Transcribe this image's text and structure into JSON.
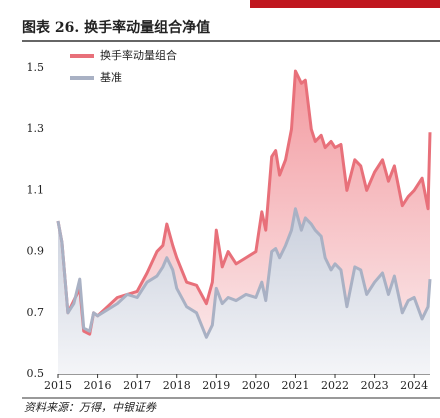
{
  "chart_data": {
    "type": "area-line",
    "title": "图表 26. 换手率动量组合净值",
    "source": "资料来源：万得，中银证券",
    "x": [
      2015.0,
      2015.1,
      2015.25,
      2015.4,
      2015.55,
      2015.65,
      2015.8,
      2015.9,
      2016.0,
      2016.25,
      2016.5,
      2016.75,
      2017.0,
      2017.25,
      2017.5,
      2017.65,
      2017.75,
      2017.9,
      2018.0,
      2018.25,
      2018.5,
      2018.75,
      2018.9,
      2019.0,
      2019.15,
      2019.3,
      2019.5,
      2019.75,
      2020.0,
      2020.15,
      2020.25,
      2020.4,
      2020.5,
      2020.6,
      2020.75,
      2020.9,
      2021.0,
      2021.15,
      2021.25,
      2021.4,
      2021.5,
      2021.65,
      2021.75,
      2021.9,
      2022.0,
      2022.15,
      2022.3,
      2022.5,
      2022.65,
      2022.8,
      2023.0,
      2023.2,
      2023.35,
      2023.5,
      2023.7,
      2023.85,
      2024.0,
      2024.2,
      2024.35,
      2024.4
    ],
    "series": [
      {
        "name": "换手率动量组合",
        "color": "#e8707a",
        "fill": "#f6b5b9",
        "values": [
          1.0,
          0.93,
          0.7,
          0.74,
          0.78,
          0.64,
          0.63,
          0.7,
          0.69,
          0.72,
          0.75,
          0.76,
          0.77,
          0.83,
          0.9,
          0.92,
          0.99,
          0.92,
          0.88,
          0.8,
          0.79,
          0.73,
          0.8,
          0.97,
          0.85,
          0.9,
          0.86,
          0.88,
          0.9,
          1.03,
          0.97,
          1.21,
          1.23,
          1.15,
          1.2,
          1.3,
          1.49,
          1.45,
          1.46,
          1.3,
          1.26,
          1.28,
          1.24,
          1.26,
          1.24,
          1.25,
          1.1,
          1.2,
          1.18,
          1.1,
          1.16,
          1.2,
          1.13,
          1.18,
          1.05,
          1.08,
          1.1,
          1.14,
          1.04,
          1.29
        ]
      },
      {
        "name": "基准",
        "color": "#a9b1c4",
        "fill": "#dde1ea",
        "values": [
          1.0,
          0.93,
          0.7,
          0.73,
          0.81,
          0.65,
          0.64,
          0.7,
          0.69,
          0.71,
          0.73,
          0.76,
          0.75,
          0.8,
          0.82,
          0.85,
          0.88,
          0.84,
          0.78,
          0.72,
          0.7,
          0.62,
          0.66,
          0.78,
          0.73,
          0.75,
          0.74,
          0.76,
          0.75,
          0.8,
          0.74,
          0.9,
          0.91,
          0.88,
          0.92,
          0.97,
          1.04,
          0.97,
          1.01,
          0.99,
          0.97,
          0.95,
          0.88,
          0.84,
          0.86,
          0.84,
          0.72,
          0.85,
          0.84,
          0.76,
          0.8,
          0.83,
          0.76,
          0.82,
          0.7,
          0.74,
          0.75,
          0.68,
          0.72,
          0.81
        ]
      }
    ],
    "xlim": [
      2015,
      2024.4
    ],
    "xticks": [
      2015,
      2016,
      2017,
      2018,
      2019,
      2020,
      2021,
      2022,
      2023,
      2024
    ],
    "ylim": [
      0.5,
      1.5
    ],
    "yticks": [
      0.5,
      0.7,
      0.9,
      1.1,
      1.3,
      1.5
    ],
    "legend": "top-left"
  }
}
